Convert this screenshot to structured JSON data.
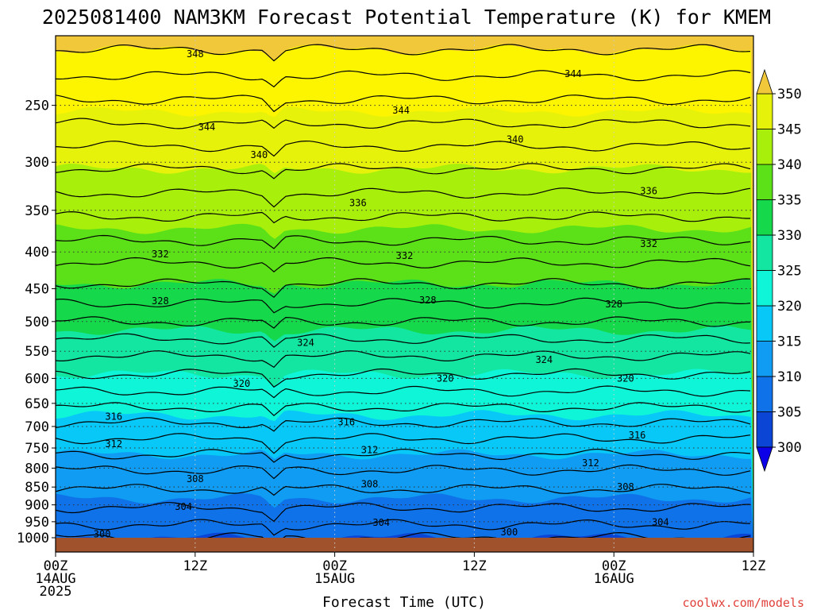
{
  "chart_data": {
    "type": "contour",
    "title": "2025081400 NAM3KM Forecast Potential Temperature (K) for KMEM",
    "xlabel": "Forecast Time (UTC)",
    "ylabel": "",
    "x_ticks": [
      {
        "hour": 0,
        "line1": "00Z",
        "line2": "14AUG",
        "line3": "2025"
      },
      {
        "hour": 12,
        "line1": "12Z",
        "line2": "",
        "line3": ""
      },
      {
        "hour": 24,
        "line1": "00Z",
        "line2": "15AUG",
        "line3": ""
      },
      {
        "hour": 36,
        "line1": "12Z",
        "line2": "",
        "line3": ""
      },
      {
        "hour": 48,
        "line1": "00Z",
        "line2": "16AUG",
        "line3": ""
      },
      {
        "hour": 60,
        "line1": "12Z",
        "line2": "",
        "line3": ""
      }
    ],
    "xlim_hours": [
      0,
      60
    ],
    "y_ticks": [
      250,
      300,
      350,
      400,
      450,
      500,
      550,
      600,
      650,
      700,
      750,
      800,
      850,
      900,
      950,
      1000
    ],
    "ylim_hpa": [
      200,
      1000
    ],
    "y_scale": "log-pressure",
    "grid": true,
    "colorbar": {
      "levels": [
        300,
        305,
        310,
        315,
        320,
        325,
        330,
        335,
        340,
        345,
        350
      ],
      "colors": [
        "#0b00e8",
        "#0a45d6",
        "#0f72e8",
        "#0f9cf2",
        "#08c8f7",
        "#0ff5d8",
        "#12e6a0",
        "#15d94a",
        "#5ce018",
        "#a8f00c",
        "#e6f20a",
        "#fdf500",
        "#f0c83a"
      ],
      "labels": [
        "300",
        "305",
        "310",
        "315",
        "320",
        "325",
        "330",
        "335",
        "340",
        "345",
        "350"
      ]
    },
    "contour_labels": [
      {
        "text": "348",
        "hour": 12.0,
        "hpa": 212
      },
      {
        "text": "344",
        "hour": 44.5,
        "hpa": 226
      },
      {
        "text": "344",
        "hour": 29.7,
        "hpa": 254
      },
      {
        "text": "344",
        "hour": 13.0,
        "hpa": 268
      },
      {
        "text": "340",
        "hour": 39.5,
        "hpa": 279
      },
      {
        "text": "340",
        "hour": 17.5,
        "hpa": 293
      },
      {
        "text": "336",
        "hour": 26.0,
        "hpa": 342
      },
      {
        "text": "336",
        "hour": 51.0,
        "hpa": 329
      },
      {
        "text": "332",
        "hour": 9.0,
        "hpa": 403
      },
      {
        "text": "332",
        "hour": 30.0,
        "hpa": 405
      },
      {
        "text": "332",
        "hour": 51.0,
        "hpa": 390
      },
      {
        "text": "328",
        "hour": 9.0,
        "hpa": 468
      },
      {
        "text": "328",
        "hour": 32.0,
        "hpa": 467
      },
      {
        "text": "328",
        "hour": 48.0,
        "hpa": 473
      },
      {
        "text": "324",
        "hour": 21.5,
        "hpa": 535
      },
      {
        "text": "324",
        "hour": 42.0,
        "hpa": 565
      },
      {
        "text": "320",
        "hour": 16.0,
        "hpa": 610
      },
      {
        "text": "320",
        "hour": 33.5,
        "hpa": 600
      },
      {
        "text": "320",
        "hour": 49.0,
        "hpa": 600
      },
      {
        "text": "316",
        "hour": 5.0,
        "hpa": 678
      },
      {
        "text": "316",
        "hour": 25.0,
        "hpa": 690
      },
      {
        "text": "316",
        "hour": 50.0,
        "hpa": 720
      },
      {
        "text": "312",
        "hour": 5.0,
        "hpa": 740
      },
      {
        "text": "312",
        "hour": 27.0,
        "hpa": 755
      },
      {
        "text": "312",
        "hour": 46.0,
        "hpa": 787
      },
      {
        "text": "308",
        "hour": 12.0,
        "hpa": 828
      },
      {
        "text": "308",
        "hour": 27.0,
        "hpa": 842
      },
      {
        "text": "308",
        "hour": 49.0,
        "hpa": 850
      },
      {
        "text": "304",
        "hour": 11.0,
        "hpa": 905
      },
      {
        "text": "304",
        "hour": 28.0,
        "hpa": 953
      },
      {
        "text": "304",
        "hour": 52.0,
        "hpa": 952
      },
      {
        "text": "300",
        "hour": 4.0,
        "hpa": 988
      },
      {
        "text": "300",
        "hour": 39.0,
        "hpa": 982
      }
    ]
  },
  "footer": {
    "credit": "coolwx.com/models"
  }
}
